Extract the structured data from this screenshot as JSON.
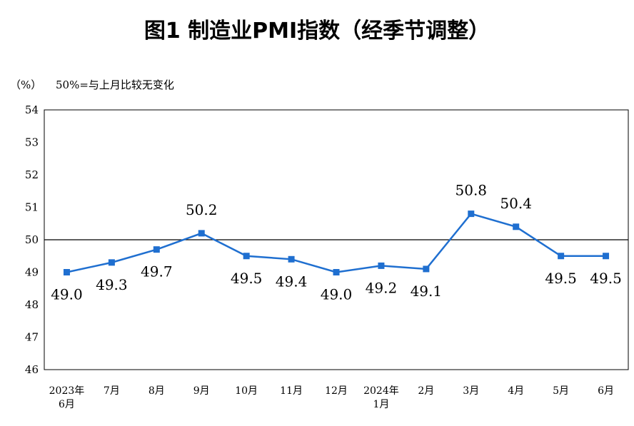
{
  "chart_data": {
    "type": "line",
    "title": "图1  制造业PMI指数（经季节调整）",
    "ylabel": "（%）",
    "annotation": "50%=与上月比较无变化",
    "categories": [
      [
        "2023年",
        "6月"
      ],
      [
        "7月"
      ],
      [
        "8月"
      ],
      [
        "9月"
      ],
      [
        "10月"
      ],
      [
        "11月"
      ],
      [
        "12月"
      ],
      [
        "2024年",
        "1月"
      ],
      [
        "2月"
      ],
      [
        "3月"
      ],
      [
        "4月"
      ],
      [
        "5月"
      ],
      [
        "6月"
      ]
    ],
    "series": [
      {
        "values": [
          49.0,
          49.3,
          49.7,
          50.2,
          49.5,
          49.4,
          49.0,
          49.2,
          49.1,
          50.8,
          50.4,
          49.5,
          49.5
        ]
      }
    ],
    "data_labels": [
      "49.0",
      "49.3",
      "49.7",
      "50.2",
      "49.5",
      "49.4",
      "49.0",
      "49.2",
      "49.1",
      "50.8",
      "50.4",
      "49.5",
      "49.5"
    ],
    "label_position": [
      "below",
      "below",
      "below",
      "above",
      "below",
      "below",
      "below",
      "below",
      "below",
      "above",
      "above",
      "below",
      "below"
    ],
    "ylim": [
      46,
      54
    ],
    "yticks": [
      46,
      47,
      48,
      49,
      50,
      51,
      52,
      53,
      54
    ],
    "reference_line": 50,
    "grid": false,
    "line_color": "#1f6fd0"
  }
}
